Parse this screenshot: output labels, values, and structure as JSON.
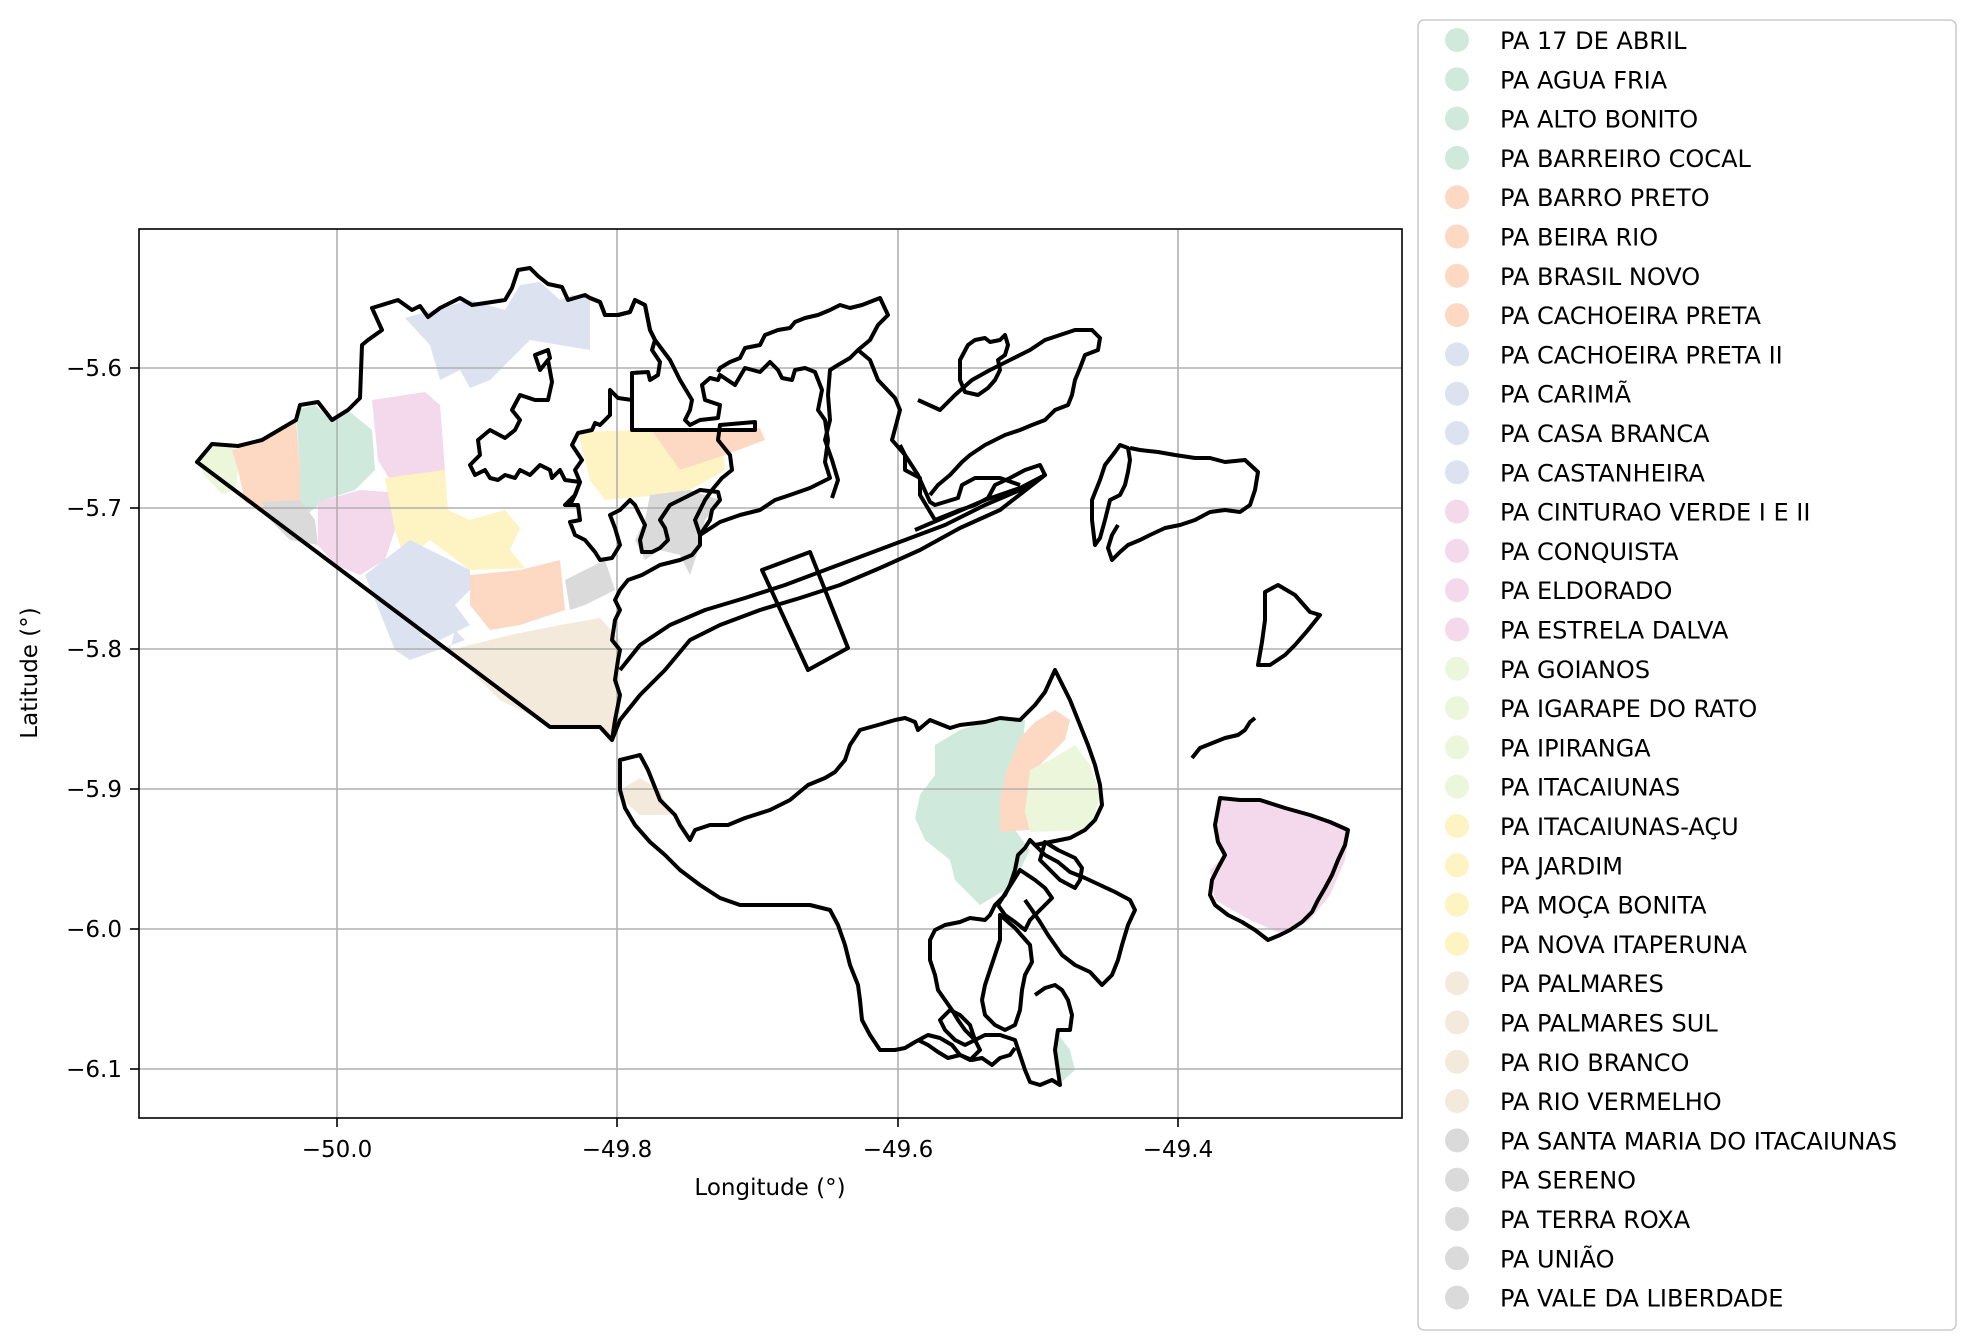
{
  "map": {
    "xlabel": "Longitude (°)",
    "ylabel": "Latitude (°)",
    "x_ticks": [
      "−50.0",
      "−49.8",
      "−49.6",
      "−49.4"
    ],
    "y_ticks": [
      "−5.6",
      "−5.7",
      "−5.8",
      "−5.9",
      "−6.0",
      "−6.1"
    ],
    "xlim": [
      -50.15,
      -49.25
    ],
    "ylim": [
      -6.135,
      -5.5
    ],
    "grid": true,
    "legend_placement": "right, outside plot"
  },
  "colors": {
    "green": "#cfeadd",
    "orange": "#fdd9c4",
    "blue": "#dde2f0",
    "pink": "#f4d9ec",
    "lime": "#ebf6da",
    "yellow": "#fef3c2",
    "beige": "#f3eadc",
    "gray": "#dadada",
    "outline": "#000000"
  },
  "legend": [
    {
      "label": "PA 17 DE ABRIL",
      "color": "green"
    },
    {
      "label": "PA AGUA FRIA",
      "color": "green"
    },
    {
      "label": "PA ALTO BONITO",
      "color": "green"
    },
    {
      "label": "PA BARREIRO COCAL",
      "color": "green"
    },
    {
      "label": "PA BARRO PRETO",
      "color": "orange"
    },
    {
      "label": "PA BEIRA RIO",
      "color": "orange"
    },
    {
      "label": "PA BRASIL NOVO",
      "color": "orange"
    },
    {
      "label": "PA CACHOEIRA PRETA",
      "color": "orange"
    },
    {
      "label": "PA CACHOEIRA PRETA II",
      "color": "blue"
    },
    {
      "label": "PA CARIMÃ",
      "color": "blue"
    },
    {
      "label": "PA CASA BRANCA",
      "color": "blue"
    },
    {
      "label": "PA CASTANHEIRA",
      "color": "blue"
    },
    {
      "label": "PA CINTURAO VERDE I E II",
      "color": "pink"
    },
    {
      "label": "PA CONQUISTA",
      "color": "pink"
    },
    {
      "label": "PA ELDORADO",
      "color": "pink"
    },
    {
      "label": "PA ESTRELA DALVA",
      "color": "pink"
    },
    {
      "label": "PA GOIANOS",
      "color": "lime"
    },
    {
      "label": "PA IGARAPE DO RATO",
      "color": "lime"
    },
    {
      "label": "PA IPIRANGA",
      "color": "lime"
    },
    {
      "label": "PA ITACAIUNAS",
      "color": "lime"
    },
    {
      "label": "PA ITACAIUNAS-AÇU",
      "color": "yellow"
    },
    {
      "label": "PA JARDIM",
      "color": "yellow"
    },
    {
      "label": "PA MOÇA BONITA",
      "color": "yellow"
    },
    {
      "label": "PA NOVA ITAPERUNA",
      "color": "yellow"
    },
    {
      "label": "PA PALMARES",
      "color": "beige"
    },
    {
      "label": "PA PALMARES SUL",
      "color": "beige"
    },
    {
      "label": "PA RIO BRANCO",
      "color": "beige"
    },
    {
      "label": "PA RIO VERMELHO",
      "color": "beige"
    },
    {
      "label": "PA SANTA MARIA DO ITACAIUNAS",
      "color": "gray"
    },
    {
      "label": "PA SERENO",
      "color": "gray"
    },
    {
      "label": "PA TERRA ROXA",
      "color": "gray"
    },
    {
      "label": "PA UNIÃO",
      "color": "gray"
    },
    {
      "label": "PA VALE DA LIBERDADE",
      "color": "gray"
    }
  ]
}
